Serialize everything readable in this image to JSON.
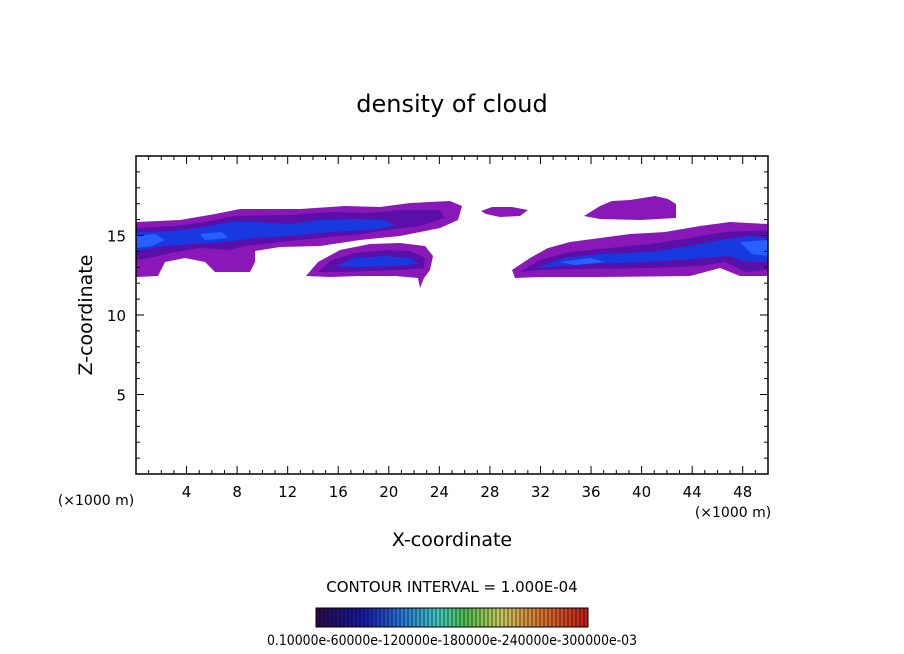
{
  "chart_data": {
    "type": "heatmap",
    "title": "density of cloud",
    "xlabel": "X-coordinate",
    "ylabel": "Z-coordinate",
    "x_unit_left": "(×1000 m)",
    "x_unit_right": "(×1000 m)",
    "xlim": [
      0,
      50
    ],
    "ylim": [
      0,
      20
    ],
    "x_ticks": [
      4,
      8,
      12,
      16,
      20,
      24,
      28,
      32,
      36,
      40,
      44,
      48
    ],
    "y_ticks": [
      5,
      10,
      15
    ],
    "contour_interval_text": "CONTOUR INTERVAL = 1.000E-04",
    "colorbar_labels_text": "0.10000e-60000e-120000e-180000e-240000e-300000e-03",
    "colorbar_colors": [
      "#2a0a4a",
      "#1a1aa8",
      "#2a78d8",
      "#40c8c0",
      "#4fc04f",
      "#c8c860",
      "#d87830",
      "#c01818"
    ],
    "grid": false,
    "cloud_regions": [
      {
        "x": [
          0,
          26
        ],
        "z": [
          12.4,
          16.6
        ],
        "peak_density": "high"
      },
      {
        "x": [
          13.5,
          23
        ],
        "z": [
          11.8,
          15.0
        ],
        "peak_density": "high"
      },
      {
        "x": [
          27.5,
          31
        ],
        "z": [
          16.1,
          16.7
        ],
        "peak_density": "low"
      },
      {
        "x": [
          35.5,
          42.5
        ],
        "z": [
          15.9,
          17.4
        ],
        "peak_density": "low"
      },
      {
        "x": [
          30,
          50
        ],
        "z": [
          12.4,
          15.8
        ],
        "peak_density": "high"
      }
    ],
    "colors": {
      "cloud_low": "#8a18b8",
      "cloud_mid": "#5a0fa8",
      "cloud_high": "#1838e0",
      "cloud_core": "#2860ff"
    }
  }
}
